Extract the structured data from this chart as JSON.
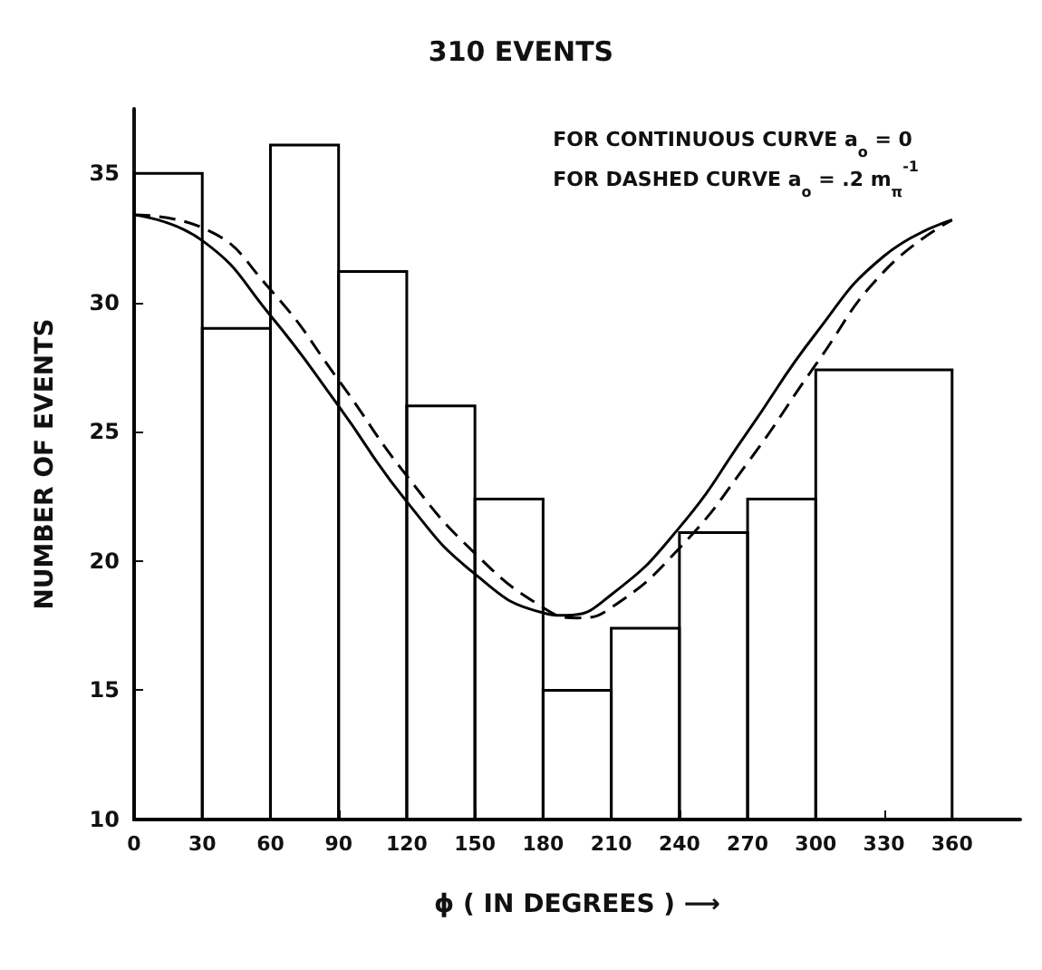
{
  "chart_data": {
    "type": "histogram",
    "title": "310 EVENTS",
    "xlabel": "ϕ ( IN DEGREES ) ⟶",
    "ylabel": "NUMBER OF EVENTS",
    "annotations": [
      "FOR CONTINUOUS CURVE a$_{o}$ = 0",
      "FOR DASHED CURVE a$_{o}$ = .2 m$_{π}$$^{-1}$"
    ],
    "bins": [
      0,
      30,
      60,
      90,
      120,
      150,
      180,
      210,
      240,
      270,
      300,
      360
    ],
    "values": [
      35,
      29,
      36.1,
      31.2,
      26,
      22.4,
      15,
      17.4,
      21.1,
      22.4,
      27.4
    ],
    "color": "#000000",
    "series": [
      {
        "type": "line",
        "line_style": "solid",
        "color": "#000000",
        "x": [
          0,
          30,
          60,
          90,
          120,
          150,
          180,
          190,
          210,
          240,
          270,
          300,
          330,
          360
        ],
        "values": [
          33.4,
          32.4,
          29.5,
          26,
          22.3,
          19.5,
          18,
          17.9,
          18.7,
          21.3,
          25,
          28.8,
          31.8,
          33.2
        ]
      },
      {
        "type": "line",
        "line_style": "dashed",
        "color": "#000000",
        "x": [
          0,
          30,
          60,
          90,
          120,
          150,
          180,
          195,
          210,
          240,
          270,
          300,
          330,
          360
        ],
        "values": [
          33.4,
          32.9,
          30.5,
          27,
          23.3,
          20.3,
          18.2,
          17.8,
          18.2,
          20.5,
          23.8,
          27.6,
          31.2,
          33.2
        ]
      }
    ],
    "xlim": [
      0,
      390
    ],
    "xticks": [
      0,
      30,
      60,
      90,
      120,
      150,
      180,
      210,
      240,
      270,
      300,
      330,
      360
    ],
    "ylim": [
      10,
      37.5
    ],
    "yticks": [
      10,
      15,
      20,
      25,
      30,
      35
    ],
    "grid": false,
    "marker": "none"
  }
}
